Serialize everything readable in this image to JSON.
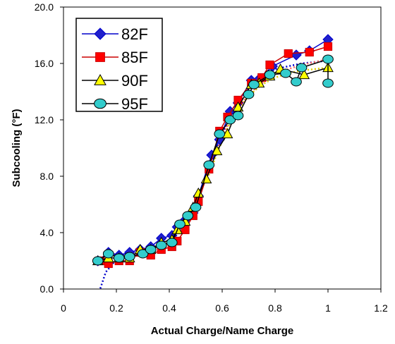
{
  "chart_data": {
    "type": "line",
    "title": "",
    "xlabel": "Actual Charge/Name Charge",
    "ylabel": "Subcooling (°F)",
    "xlim": [
      0,
      1.2
    ],
    "ylim": [
      0,
      20
    ],
    "xticks": [
      0,
      0.2,
      0.4,
      0.6,
      0.8,
      1,
      1.2
    ],
    "xtick_labels": [
      "0",
      "0.2",
      "0.4",
      "0.6",
      "0.8",
      "1",
      "1.2"
    ],
    "yticks": [
      0,
      4,
      8,
      12,
      16,
      20
    ],
    "ytick_labels": [
      "0.0",
      "4.0",
      "8.0",
      "12.0",
      "16.0",
      "20.0"
    ],
    "grid": false,
    "legend_position": "top-left",
    "series": [
      {
        "name": "82F",
        "color": "#0000CC",
        "marker": "diamond",
        "marker_fill": "#2020CC",
        "points": [
          [
            0.13,
            2.0
          ],
          [
            0.17,
            2.6
          ],
          [
            0.21,
            2.4
          ],
          [
            0.25,
            2.6
          ],
          [
            0.29,
            2.8
          ],
          [
            0.33,
            3.0
          ],
          [
            0.37,
            3.6
          ],
          [
            0.41,
            3.8
          ],
          [
            0.43,
            4.4
          ],
          [
            0.46,
            4.9
          ],
          [
            0.49,
            5.4
          ],
          [
            0.51,
            6.6
          ],
          [
            0.56,
            9.5
          ],
          [
            0.59,
            10.6
          ],
          [
            0.63,
            12.6
          ],
          [
            0.66,
            13.2
          ],
          [
            0.71,
            14.8
          ],
          [
            0.74,
            14.9
          ],
          [
            0.79,
            15.8
          ],
          [
            0.88,
            16.6
          ],
          [
            0.93,
            16.9
          ],
          [
            1.0,
            17.7
          ]
        ]
      },
      {
        "name": "85F",
        "color": "#CC0000",
        "marker": "square",
        "marker_fill": "#FF0000",
        "points": [
          [
            0.14,
            2.0
          ],
          [
            0.17,
            1.8
          ],
          [
            0.21,
            2.0
          ],
          [
            0.25,
            2.0
          ],
          [
            0.29,
            2.6
          ],
          [
            0.33,
            2.4
          ],
          [
            0.37,
            2.8
          ],
          [
            0.41,
            3.0
          ],
          [
            0.43,
            3.4
          ],
          [
            0.46,
            4.2
          ],
          [
            0.49,
            5.2
          ],
          [
            0.51,
            6.2
          ],
          [
            0.55,
            8.5
          ],
          [
            0.59,
            11.2
          ],
          [
            0.62,
            12.2
          ],
          [
            0.66,
            13.4
          ],
          [
            0.71,
            14.6
          ],
          [
            0.75,
            15.0
          ],
          [
            0.78,
            15.9
          ],
          [
            0.85,
            16.7
          ],
          [
            0.93,
            16.8
          ],
          [
            1.0,
            17.2
          ]
        ]
      },
      {
        "name": "90F",
        "color": "#000000",
        "marker": "triangle",
        "marker_fill": "#FFFF00",
        "points": [
          [
            0.13,
            2.0
          ],
          [
            0.17,
            2.2
          ],
          [
            0.21,
            2.2
          ],
          [
            0.25,
            2.2
          ],
          [
            0.29,
            2.8
          ],
          [
            0.33,
            2.8
          ],
          [
            0.37,
            3.3
          ],
          [
            0.41,
            3.5
          ],
          [
            0.43,
            4.2
          ],
          [
            0.46,
            4.8
          ],
          [
            0.49,
            5.8
          ],
          [
            0.51,
            6.8
          ],
          [
            0.54,
            7.8
          ],
          [
            0.58,
            9.8
          ],
          [
            0.62,
            11.0
          ],
          [
            0.66,
            12.9
          ],
          [
            0.71,
            14.5
          ],
          [
            0.74,
            14.6
          ],
          [
            0.78,
            15.1
          ],
          [
            0.82,
            15.6
          ],
          [
            0.91,
            15.2
          ],
          [
            1.0,
            15.7
          ]
        ]
      },
      {
        "name": "95F",
        "color": "#000000",
        "marker": "circle",
        "marker_fill": "#33CCCC",
        "points": [
          [
            0.13,
            2.0
          ],
          [
            0.17,
            2.5
          ],
          [
            0.21,
            2.2
          ],
          [
            0.25,
            2.3
          ],
          [
            0.3,
            2.5
          ],
          [
            0.33,
            2.8
          ],
          [
            0.37,
            3.1
          ],
          [
            0.41,
            3.3
          ],
          [
            0.44,
            4.6
          ],
          [
            0.47,
            5.2
          ],
          [
            0.5,
            5.8
          ],
          [
            0.55,
            8.8
          ],
          [
            0.59,
            11.0
          ],
          [
            0.63,
            12.0
          ],
          [
            0.66,
            12.3
          ],
          [
            0.7,
            13.8
          ],
          [
            0.72,
            14.5
          ],
          [
            0.78,
            15.2
          ],
          [
            0.84,
            15.3
          ],
          [
            0.88,
            14.7
          ],
          [
            0.9,
            15.7
          ],
          [
            1.0,
            16.3
          ],
          [
            1.0,
            14.6
          ]
        ]
      }
    ],
    "trendlines": [
      {
        "color": "#0000CC",
        "style": "dotted",
        "points": [
          [
            0.135,
            -0.2
          ],
          [
            0.16,
            1.2
          ],
          [
            0.2,
            2.1
          ],
          [
            0.25,
            2.3
          ],
          [
            0.3,
            2.5
          ],
          [
            0.35,
            3.0
          ],
          [
            0.4,
            3.5
          ],
          [
            0.45,
            4.8
          ],
          [
            0.5,
            6.0
          ],
          [
            0.55,
            8.5
          ],
          [
            0.6,
            11.0
          ],
          [
            0.65,
            12.8
          ],
          [
            0.7,
            14.2
          ],
          [
            0.75,
            15.0
          ],
          [
            0.8,
            15.6
          ],
          [
            0.85,
            15.8
          ],
          [
            0.9,
            16.0
          ],
          [
            0.95,
            16.1
          ],
          [
            1.0,
            16.2
          ]
        ]
      },
      {
        "color": "#FF6666",
        "style": "dotted",
        "points": [
          [
            0.54,
            7.8
          ],
          [
            0.58,
            9.8
          ],
          [
            0.62,
            11.6
          ],
          [
            0.66,
            12.8
          ],
          [
            0.7,
            13.8
          ],
          [
            0.75,
            14.6
          ],
          [
            0.8,
            15.2
          ],
          [
            0.85,
            15.6
          ],
          [
            0.9,
            15.9
          ],
          [
            0.95,
            16.1
          ],
          [
            1.0,
            16.3
          ]
        ]
      },
      {
        "color": "#DDCC00",
        "style": "dotted",
        "points": [
          [
            0.54,
            7.6
          ],
          [
            0.58,
            9.6
          ],
          [
            0.62,
            11.4
          ],
          [
            0.66,
            12.7
          ],
          [
            0.7,
            13.7
          ],
          [
            0.75,
            14.5
          ],
          [
            0.8,
            15.0
          ],
          [
            0.85,
            15.3
          ],
          [
            0.9,
            15.5
          ],
          [
            0.95,
            15.6
          ],
          [
            1.0,
            15.7
          ]
        ]
      }
    ]
  }
}
